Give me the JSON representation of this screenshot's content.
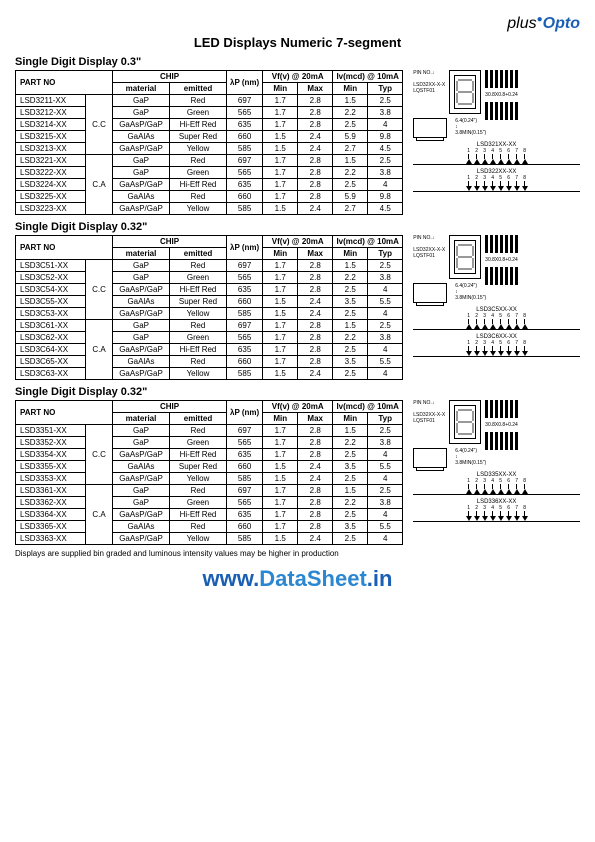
{
  "logo": {
    "plus": "plus",
    "opto": "Opto"
  },
  "title": "LED Displays Numeric 7-segment",
  "footnote": "Displays are supplied bin graded and luminous intensity values may be higher in production",
  "watermark": {
    "prefix": "www.",
    "mid": "DataSheet",
    "suffix": ".in"
  },
  "headers": {
    "partno": "PART NO",
    "chip": "CHIP",
    "wp": "λP (nm)",
    "vf": "Vf(v) @ 20mA",
    "iv": "Iv(mcd) @ 10mA",
    "material": "material",
    "emitted": "emitted",
    "min": "Min",
    "max": "Max",
    "typ": "Typ"
  },
  "sections": [
    {
      "title": "Single Digit Display 0.3\"",
      "circuit_labels": [
        "LSD321XX-XX",
        "LSD322XX-XX"
      ],
      "rows": [
        {
          "part": "LSD3211-XX",
          "conf": "C.C",
          "mat": "GaP",
          "emit": "Red",
          "wp": "697",
          "vfmin": "1.7",
          "vfmax": "2.8",
          "ivmin": "1.5",
          "ivtyp": "2.5",
          "span": 5
        },
        {
          "part": "LSD3212-XX",
          "mat": "GaP",
          "emit": "Green",
          "wp": "565",
          "vfmin": "1.7",
          "vfmax": "2.8",
          "ivmin": "2.2",
          "ivtyp": "3.8"
        },
        {
          "part": "LSD3214-XX",
          "mat": "GaAsP/GaP",
          "emit": "Hi-Eff Red",
          "wp": "635",
          "vfmin": "1.7",
          "vfmax": "2.8",
          "ivmin": "2.5",
          "ivtyp": "4"
        },
        {
          "part": "LSD3215-XX",
          "mat": "GaAlAs",
          "emit": "Super Red",
          "wp": "660",
          "vfmin": "1.5",
          "vfmax": "2.4",
          "ivmin": "5.9",
          "ivtyp": "9.8"
        },
        {
          "part": "LSD3213-XX",
          "mat": "GaAsP/GaP",
          "emit": "Yellow",
          "wp": "585",
          "vfmin": "1.5",
          "vfmax": "2.4",
          "ivmin": "2.7",
          "ivtyp": "4.5"
        },
        {
          "part": "LSD3221-XX",
          "conf": "C.A",
          "mat": "GaP",
          "emit": "Red",
          "wp": "697",
          "vfmin": "1.7",
          "vfmax": "2.8",
          "ivmin": "1.5",
          "ivtyp": "2.5",
          "span": 5
        },
        {
          "part": "LSD3222-XX",
          "mat": "GaP",
          "emit": "Green",
          "wp": "565",
          "vfmin": "1.7",
          "vfmax": "2.8",
          "ivmin": "2.2",
          "ivtyp": "3.8"
        },
        {
          "part": "LSD3224-XX",
          "mat": "GaAsP/GaP",
          "emit": "Hi-Eff Red",
          "wp": "635",
          "vfmin": "1.7",
          "vfmax": "2.8",
          "ivmin": "2.5",
          "ivtyp": "4"
        },
        {
          "part": "LSD3225-XX",
          "mat": "GaAlAs",
          "emit": "Red",
          "wp": "660",
          "vfmin": "1.7",
          "vfmax": "2.8",
          "ivmin": "5.9",
          "ivtyp": "9.8"
        },
        {
          "part": "LSD3223-XX",
          "mat": "GaAsP/GaP",
          "emit": "Yellow",
          "wp": "585",
          "vfmin": "1.5",
          "vfmax": "2.4",
          "ivmin": "2.7",
          "ivtyp": "4.5"
        }
      ]
    },
    {
      "title": "Single Digit Display 0.32\"",
      "circuit_labels": [
        "LSD3C5XX-XX",
        "LSD3C6XX-XX"
      ],
      "rows": [
        {
          "part": "LSD3C51-XX",
          "conf": "C.C",
          "mat": "GaP",
          "emit": "Red",
          "wp": "697",
          "vfmin": "1.7",
          "vfmax": "2.8",
          "ivmin": "1.5",
          "ivtyp": "2.5",
          "span": 5
        },
        {
          "part": "LSD3C52-XX",
          "mat": "GaP",
          "emit": "Green",
          "wp": "565",
          "vfmin": "1.7",
          "vfmax": "2.8",
          "ivmin": "2.2",
          "ivtyp": "3.8"
        },
        {
          "part": "LSD3C54-XX",
          "mat": "GaAsP/GaP",
          "emit": "Hi-Eff Red",
          "wp": "635",
          "vfmin": "1.7",
          "vfmax": "2.8",
          "ivmin": "2.5",
          "ivtyp": "4"
        },
        {
          "part": "LSD3C55-XX",
          "mat": "GaAlAs",
          "emit": "Super Red",
          "wp": "660",
          "vfmin": "1.5",
          "vfmax": "2.4",
          "ivmin": "3.5",
          "ivtyp": "5.5"
        },
        {
          "part": "LSD3C53-XX",
          "mat": "GaAsP/GaP",
          "emit": "Yellow",
          "wp": "585",
          "vfmin": "1.5",
          "vfmax": "2.4",
          "ivmin": "2.5",
          "ivtyp": "4"
        },
        {
          "part": "LSD3C61-XX",
          "conf": "C.A",
          "mat": "GaP",
          "emit": "Red",
          "wp": "697",
          "vfmin": "1.7",
          "vfmax": "2.8",
          "ivmin": "1.5",
          "ivtyp": "2.5",
          "span": 5
        },
        {
          "part": "LSD3C62-XX",
          "mat": "GaP",
          "emit": "Green",
          "wp": "565",
          "vfmin": "1.7",
          "vfmax": "2.8",
          "ivmin": "2.2",
          "ivtyp": "3.8"
        },
        {
          "part": "LSD3C64-XX",
          "mat": "GaAsP/GaP",
          "emit": "Hi-Eff Red",
          "wp": "635",
          "vfmin": "1.7",
          "vfmax": "2.8",
          "ivmin": "2.5",
          "ivtyp": "4"
        },
        {
          "part": "LSD3C65-XX",
          "mat": "GaAlAs",
          "emit": "Red",
          "wp": "660",
          "vfmin": "1.7",
          "vfmax": "2.8",
          "ivmin": "3.5",
          "ivtyp": "5.5"
        },
        {
          "part": "LSD3C63-XX",
          "mat": "GaAsP/GaP",
          "emit": "Yellow",
          "wp": "585",
          "vfmin": "1.5",
          "vfmax": "2.4",
          "ivmin": "2.5",
          "ivtyp": "4"
        }
      ]
    },
    {
      "title": "Single Digit Display 0.32\"",
      "circuit_labels": [
        "LSD335XX-XX",
        "LSD336XX-XX"
      ],
      "rows": [
        {
          "part": "LSD3351-XX",
          "conf": "C.C",
          "mat": "GaP",
          "emit": "Red",
          "wp": "697",
          "vfmin": "1.7",
          "vfmax": "2.8",
          "ivmin": "1.5",
          "ivtyp": "2.5",
          "span": 5
        },
        {
          "part": "LSD3352-XX",
          "mat": "GaP",
          "emit": "Green",
          "wp": "565",
          "vfmin": "1.7",
          "vfmax": "2.8",
          "ivmin": "2.2",
          "ivtyp": "3.8"
        },
        {
          "part": "LSD3354-XX",
          "mat": "GaAsP/GaP",
          "emit": "Hi-Eff Red",
          "wp": "635",
          "vfmin": "1.7",
          "vfmax": "2.8",
          "ivmin": "2.5",
          "ivtyp": "4"
        },
        {
          "part": "LSD3355-XX",
          "mat": "GaAlAs",
          "emit": "Super Red",
          "wp": "660",
          "vfmin": "1.5",
          "vfmax": "2.4",
          "ivmin": "3.5",
          "ivtyp": "5.5"
        },
        {
          "part": "LSD3353-XX",
          "mat": "GaAsP/GaP",
          "emit": "Yellow",
          "wp": "585",
          "vfmin": "1.5",
          "vfmax": "2.4",
          "ivmin": "2.5",
          "ivtyp": "4"
        },
        {
          "part": "LSD3361-XX",
          "conf": "C.A",
          "mat": "GaP",
          "emit": "Red",
          "wp": "697",
          "vfmin": "1.7",
          "vfmax": "2.8",
          "ivmin": "1.5",
          "ivtyp": "2.5",
          "span": 5
        },
        {
          "part": "LSD3362-XX",
          "mat": "GaP",
          "emit": "Green",
          "wp": "565",
          "vfmin": "1.7",
          "vfmax": "2.8",
          "ivmin": "2.2",
          "ivtyp": "3.8"
        },
        {
          "part": "LSD3364-XX",
          "mat": "GaAsP/GaP",
          "emit": "Hi-Eff Red",
          "wp": "635",
          "vfmin": "1.7",
          "vfmax": "2.8",
          "ivmin": "2.5",
          "ivtyp": "4"
        },
        {
          "part": "LSD3365-XX",
          "mat": "GaAlAs",
          "emit": "Red",
          "wp": "660",
          "vfmin": "1.7",
          "vfmax": "2.8",
          "ivmin": "3.5",
          "ivtyp": "5.5"
        },
        {
          "part": "LSD3363-XX",
          "mat": "GaAsP/GaP",
          "emit": "Yellow",
          "wp": "585",
          "vfmin": "1.5",
          "vfmax": "2.4",
          "ivmin": "2.5",
          "ivtyp": "4"
        }
      ]
    }
  ]
}
